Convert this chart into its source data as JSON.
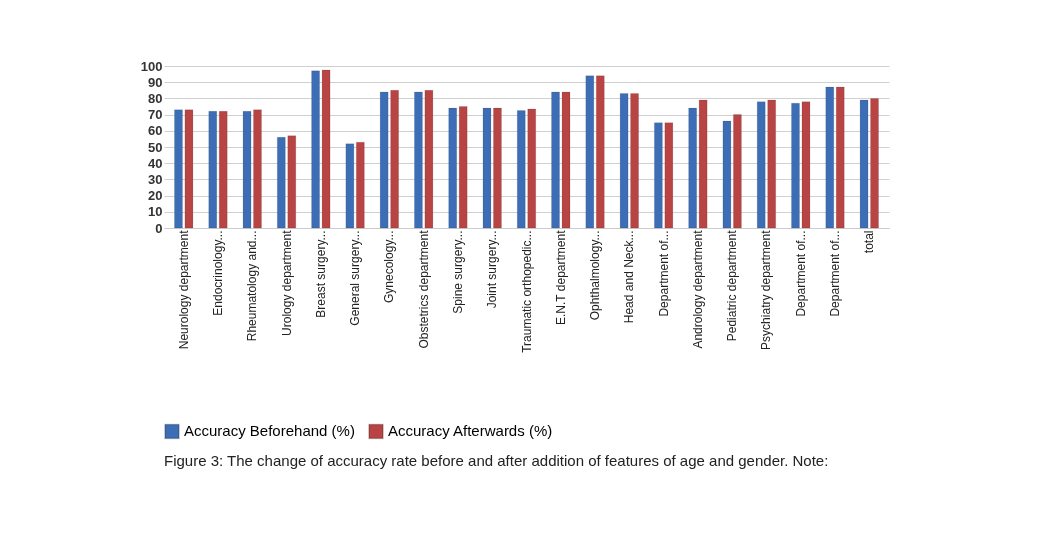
{
  "chart_data": {
    "type": "bar",
    "categories": [
      "Neurology department",
      "Endocrinology...",
      "Rheumatology and...",
      "Urology department",
      "Breast surgery...",
      "General surgery...",
      "Gynecology...",
      "Obstetrics department",
      "Spine surgery...",
      "Joint surgery...",
      "Traumatic orthopedic...",
      "E.N.T department",
      "Ophthalmology...",
      "Head and Neck...",
      "Department of...",
      "Andrology department",
      "Pediatric department",
      "Psychiatry department",
      "Department of...",
      "Department of...",
      "total"
    ],
    "series": [
      {
        "name": "Accuracy Beforehand (%)",
        "color": "#3d6db4",
        "values": [
          73,
          72,
          72,
          56,
          97,
          52,
          84,
          84,
          74,
          74,
          72.5,
          84,
          94,
          83,
          65,
          74,
          66,
          78,
          77,
          87,
          79
        ]
      },
      {
        "name": "Accuracy Afterwards (%)",
        "color": "#b84444",
        "values": [
          73,
          72,
          73,
          57,
          97.5,
          53,
          85,
          85,
          75,
          74,
          73.5,
          84,
          94,
          83,
          65,
          79,
          70,
          79,
          78,
          87,
          80
        ]
      }
    ],
    "ylim": [
      0,
      100
    ],
    "yticks": [
      0,
      10,
      20,
      30,
      40,
      50,
      60,
      70,
      80,
      90,
      100
    ],
    "grid": "y",
    "legend": "bottom",
    "annotations": [
      "Figure 3: The change of accuracy rate before and after addition of features of age and gender.  Note:"
    ]
  }
}
